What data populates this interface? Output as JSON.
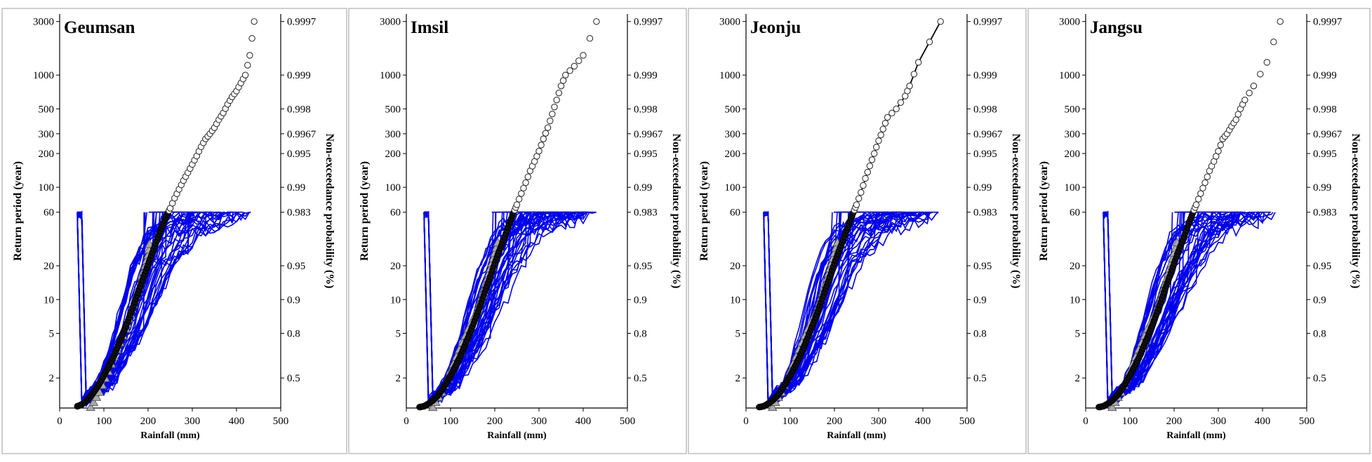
{
  "chart_data": [
    {
      "type": "line",
      "title": "Geumsan",
      "xlabel": "Rainfall (mm)",
      "ylabel": "Return period (year)",
      "y2label": "Non-exceedance probability (%)",
      "xlim": [
        0,
        500
      ],
      "ylim": [
        1.08,
        3500
      ],
      "yscale": "log",
      "xticks": [
        0,
        100,
        200,
        300,
        400,
        500
      ],
      "yticks": [
        2,
        5,
        10,
        20,
        60,
        100,
        200,
        300,
        500,
        1000,
        3000
      ],
      "y2ticks": [
        "0.5",
        "0.8",
        "0.9",
        "0.95",
        "0.983",
        "0.99",
        "0.995",
        "0.9967",
        "0.998",
        "0.999",
        "0.9997"
      ],
      "cap_T": 60,
      "fitted_curve": false,
      "observed": {
        "x": [
          40,
          50,
          60,
          70,
          80,
          90,
          100,
          110,
          120,
          130,
          140,
          150,
          160,
          170,
          180,
          190,
          200,
          210,
          220,
          230,
          240,
          250,
          260,
          270,
          280,
          290,
          300,
          310,
          320,
          330,
          340,
          350,
          360,
          370,
          380,
          390,
          400,
          410,
          420,
          430,
          440
        ],
        "T": [
          1.12,
          1.16,
          1.25,
          1.38,
          1.55,
          1.78,
          2.1,
          2.5,
          3.0,
          3.7,
          4.6,
          5.8,
          7.4,
          9.5,
          12.3,
          15.9,
          20.5,
          26.3,
          33.7,
          43,
          54,
          65,
          80,
          96,
          115,
          135,
          160,
          190,
          230,
          270,
          300,
          340,
          400,
          460,
          550,
          640,
          720,
          850,
          1000,
          1500,
          3000
        ]
      },
      "simulated": {
        "x": [
          50,
          100,
          150,
          200,
          250,
          300,
          350,
          400,
          440
        ],
        "T": [
          1.2,
          1.8,
          5,
          20,
          40,
          50,
          55,
          58,
          60
        ]
      },
      "triangles": {
        "x": [
          70,
          90,
          110,
          130,
          150,
          160,
          170,
          180,
          190,
          200,
          205
        ],
        "T": [
          1.1,
          1.5,
          2.3,
          3.6,
          5.5,
          7.5,
          10,
          13,
          18,
          25,
          35
        ]
      }
    },
    {
      "type": "line",
      "title": "Imsil",
      "xlabel": "Rainfall (mm)",
      "ylabel": "Return period (year)",
      "y2label": "Non-exceedance probability (%)",
      "xlim": [
        0,
        500
      ],
      "ylim": [
        1.08,
        3500
      ],
      "yscale": "log",
      "xticks": [
        0,
        100,
        200,
        300,
        400,
        500
      ],
      "yticks": [
        2,
        5,
        10,
        20,
        60,
        100,
        200,
        300,
        500,
        1000,
        3000
      ],
      "y2ticks": [
        "0.5",
        "0.8",
        "0.9",
        "0.95",
        "0.983",
        "0.99",
        "0.995",
        "0.9967",
        "0.998",
        "0.999",
        "0.9997"
      ],
      "cap_T": 60,
      "fitted_curve": false,
      "observed": {
        "x": [
          30,
          40,
          50,
          60,
          70,
          80,
          90,
          100,
          110,
          120,
          130,
          140,
          150,
          160,
          170,
          180,
          190,
          200,
          210,
          220,
          230,
          240,
          250,
          260,
          270,
          280,
          290,
          300,
          310,
          320,
          330,
          340,
          350,
          360,
          380,
          400,
          430
        ],
        "T": [
          1.1,
          1.12,
          1.18,
          1.26,
          1.38,
          1.55,
          1.8,
          2.1,
          2.5,
          3.0,
          3.7,
          4.6,
          5.8,
          7.4,
          9.5,
          12.5,
          16,
          21,
          27,
          34,
          44,
          56,
          70,
          88,
          110,
          140,
          170,
          210,
          270,
          340,
          450,
          600,
          800,
          1000,
          1200,
          1500,
          3000
        ]
      },
      "simulated": {
        "x": [
          50,
          100,
          150,
          200,
          250,
          300,
          350,
          400,
          430
        ],
        "T": [
          1.2,
          1.8,
          5,
          18,
          40,
          50,
          55,
          58,
          60
        ]
      },
      "triangles": {
        "x": [
          60,
          80,
          100,
          120,
          140,
          160,
          170,
          180,
          190,
          200,
          210
        ],
        "T": [
          1.1,
          1.5,
          2.3,
          3.6,
          5.5,
          8,
          10.5,
          14,
          19,
          26,
          36
        ]
      }
    },
    {
      "type": "line",
      "title": "Jeonju",
      "xlabel": "Rainfall (mm)",
      "ylabel": "Return period (year)",
      "y2label": "Non-exceedance probability (%)",
      "xlim": [
        0,
        500
      ],
      "ylim": [
        1.08,
        3500
      ],
      "yscale": "log",
      "xticks": [
        0,
        100,
        200,
        300,
        400,
        500
      ],
      "yticks": [
        2,
        5,
        10,
        20,
        60,
        100,
        200,
        300,
        500,
        1000,
        3000
      ],
      "y2ticks": [
        "0.5",
        "0.8",
        "0.9",
        "0.95",
        "0.983",
        "0.99",
        "0.995",
        "0.9967",
        "0.998",
        "0.999",
        "0.9997"
      ],
      "cap_T": 60,
      "fitted_curve": true,
      "observed": {
        "x": [
          30,
          40,
          50,
          60,
          70,
          80,
          90,
          100,
          110,
          120,
          130,
          140,
          150,
          160,
          170,
          180,
          190,
          200,
          210,
          220,
          230,
          240,
          250,
          260,
          270,
          280,
          290,
          300,
          310,
          320,
          340,
          360,
          370,
          390,
          440
        ],
        "T": [
          1.1,
          1.12,
          1.18,
          1.26,
          1.38,
          1.55,
          1.8,
          2.1,
          2.5,
          3.0,
          3.7,
          4.6,
          5.8,
          7.4,
          9.5,
          12.5,
          16,
          21,
          27,
          34,
          44,
          56,
          70,
          90,
          120,
          155,
          200,
          260,
          330,
          420,
          500,
          650,
          800,
          1300,
          3000
        ]
      },
      "simulated": {
        "x": [
          50,
          100,
          150,
          200,
          250,
          300,
          350,
          400,
          440
        ],
        "T": [
          1.2,
          1.8,
          5,
          20,
          40,
          50,
          55,
          58,
          60
        ]
      },
      "triangles": {
        "x": [
          60,
          80,
          100,
          120,
          140,
          160,
          170,
          180,
          190,
          200,
          210
        ],
        "T": [
          1.1,
          1.5,
          2.3,
          3.6,
          5.5,
          8,
          10.5,
          14,
          19,
          26,
          36
        ]
      }
    },
    {
      "type": "line",
      "title": "Jangsu",
      "xlabel": "Rainfall (mm)",
      "ylabel": "Return period (year)",
      "y2label": "Non-exceedance probability (%)",
      "xlim": [
        0,
        500
      ],
      "ylim": [
        1.08,
        3500
      ],
      "yscale": "log",
      "xticks": [
        0,
        100,
        200,
        300,
        400,
        500
      ],
      "yticks": [
        2,
        5,
        10,
        20,
        60,
        100,
        200,
        300,
        500,
        1000,
        3000
      ],
      "y2ticks": [
        "0.5",
        "0.8",
        "0.9",
        "0.95",
        "0.983",
        "0.99",
        "0.995",
        "0.9967",
        "0.998",
        "0.999",
        "0.9997"
      ],
      "cap_T": 60,
      "fitted_curve": false,
      "observed": {
        "x": [
          30,
          40,
          50,
          60,
          70,
          80,
          90,
          100,
          110,
          120,
          130,
          140,
          150,
          160,
          170,
          180,
          190,
          200,
          210,
          220,
          230,
          240,
          250,
          260,
          270,
          280,
          290,
          300,
          310,
          320,
          330,
          340,
          350,
          360,
          380,
          410,
          440
        ],
        "T": [
          1.1,
          1.12,
          1.18,
          1.26,
          1.38,
          1.55,
          1.8,
          2.1,
          2.5,
          3.0,
          3.7,
          4.6,
          5.8,
          7.4,
          9.5,
          12.5,
          16,
          21,
          27,
          34,
          44,
          56,
          70,
          88,
          110,
          140,
          170,
          210,
          270,
          300,
          350,
          400,
          500,
          600,
          800,
          1300,
          3000
        ]
      },
      "simulated": {
        "x": [
          50,
          100,
          150,
          200,
          250,
          300,
          350,
          400,
          440
        ],
        "T": [
          1.2,
          1.8,
          5,
          18,
          40,
          50,
          55,
          58,
          60
        ]
      },
      "triangles": {
        "x": [
          60,
          80,
          100,
          120,
          140,
          160,
          170,
          180,
          190,
          200,
          210
        ],
        "T": [
          1.1,
          1.5,
          2.3,
          3.6,
          5.5,
          8,
          10.5,
          14,
          19,
          26,
          36
        ]
      }
    }
  ],
  "colors": {
    "simulated": "#0000ee",
    "observed_marker": "#ffffff",
    "triangle": "#a9a9a9"
  }
}
